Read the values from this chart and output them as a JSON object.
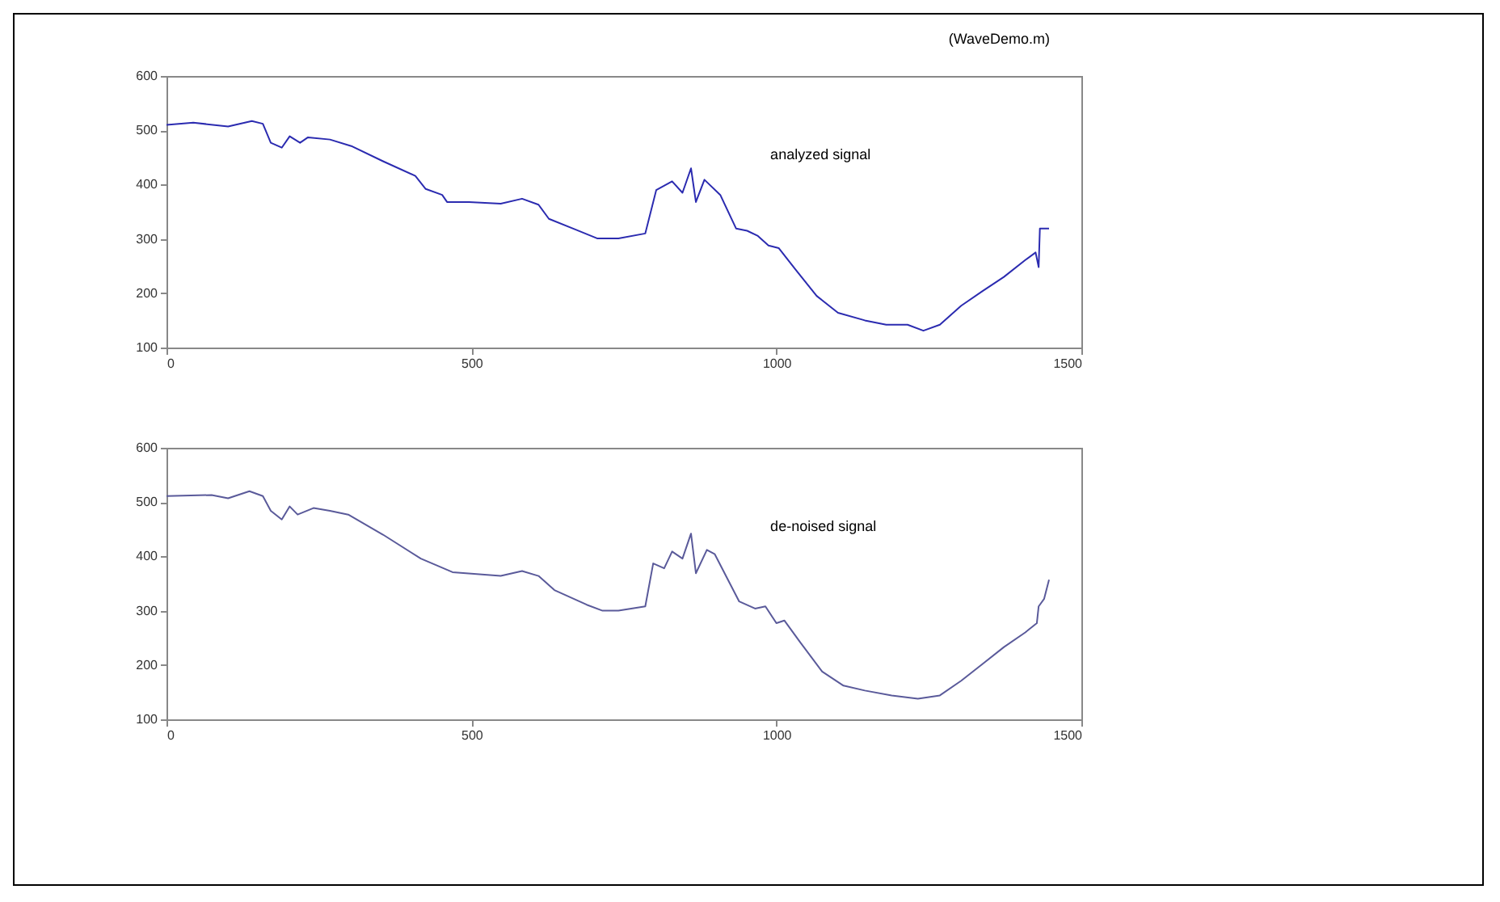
{
  "chart_data": [
    {
      "type": "line",
      "title": "(WaveDemo.m)",
      "annotations": [
        "analyzed signal"
      ],
      "xlim": [
        0,
        1500
      ],
      "ylim": [
        100,
        600
      ],
      "xticks": [
        0,
        500,
        1000,
        1500
      ],
      "yticks": [
        100,
        200,
        300,
        400,
        500,
        600
      ],
      "series": [
        {
          "color": "#2b2bb0",
          "x": [
            0,
            44,
            101,
            140,
            158,
            171,
            189,
            202,
            219,
            232,
            268,
            303,
            355,
            408,
            425,
            452,
            460,
            496,
            548,
            583,
            610,
            627,
            671,
            706,
            741,
            785,
            803,
            829,
            846,
            860,
            868,
            882,
            908,
            934,
            952,
            969,
            987,
            1004,
            1031,
            1066,
            1101,
            1145,
            1180,
            1215,
            1241,
            1268,
            1303,
            1338,
            1373,
            1408,
            1425,
            1430,
            1432,
            1447
          ],
          "values": [
            510,
            514,
            507,
            517,
            512,
            477,
            468,
            489,
            477,
            487,
            483,
            471,
            443,
            416,
            392,
            381,
            368,
            368,
            365,
            374,
            363,
            337,
            317,
            301,
            301,
            310,
            390,
            406,
            385,
            430,
            368,
            409,
            381,
            319,
            315,
            306,
            288,
            283,
            244,
            195,
            164,
            150,
            142,
            142,
            131,
            142,
            177,
            204,
            230,
            261,
            275,
            248,
            319,
            319
          ]
        }
      ]
    },
    {
      "type": "line",
      "annotations": [
        "de-noised signal"
      ],
      "xlim": [
        0,
        1500
      ],
      "ylim": [
        100,
        600
      ],
      "xticks": [
        0,
        500,
        1000,
        1500
      ],
      "yticks": [
        100,
        200,
        300,
        400,
        500,
        600
      ],
      "series": [
        {
          "color": "#5a5a9a",
          "x": [
            0,
            74,
            101,
            136,
            158,
            171,
            189,
            202,
            215,
            241,
            268,
            298,
            355,
            417,
            469,
            548,
            583,
            610,
            636,
            689,
            715,
            741,
            785,
            798,
            816,
            829,
            846,
            860,
            868,
            886,
            899,
            939,
            965,
            982,
            1000,
            1013,
            1039,
            1075,
            1110,
            1145,
            1189,
            1232,
            1268,
            1303,
            1338,
            1373,
            1408,
            1427,
            1430,
            1439,
            1447
          ],
          "values": [
            511,
            513,
            507,
            520,
            511,
            484,
            468,
            492,
            477,
            489,
            484,
            477,
            440,
            396,
            371,
            364,
            373,
            364,
            338,
            311,
            300,
            300,
            308,
            387,
            378,
            409,
            396,
            442,
            369,
            412,
            404,
            317,
            304,
            308,
            277,
            282,
            242,
            188,
            162,
            153,
            144,
            138,
            144,
            171,
            202,
            233,
            260,
            277,
            308,
            322,
            357
          ]
        }
      ]
    }
  ]
}
